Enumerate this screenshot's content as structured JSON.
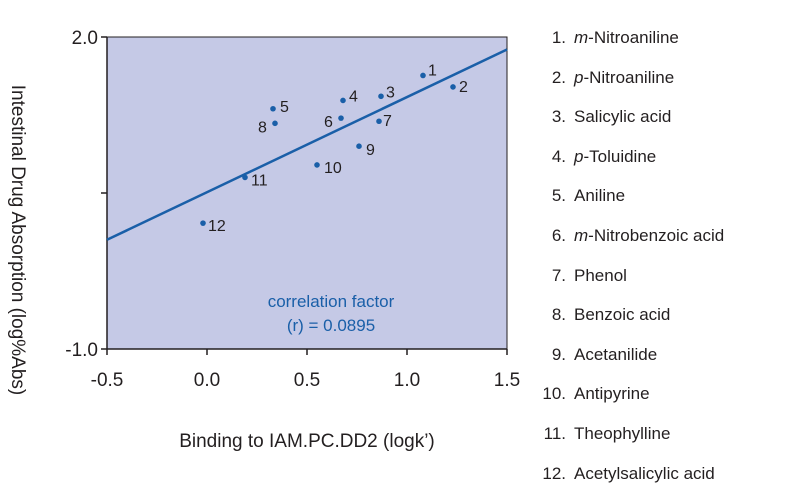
{
  "chart_data": {
    "type": "scatter",
    "title": "",
    "xlabel": "Binding to IAM.PC.DD2 (logk’)",
    "ylabel": "Intestinal Drug Absorption (log%Abs)",
    "xlim": [
      -0.5,
      1.5
    ],
    "ylim": [
      -1.0,
      2.0
    ],
    "x_ticks": [
      "-0.5",
      "0.0",
      "0.5",
      "1.0",
      "1.5"
    ],
    "y_ticks": [
      "2.0",
      "-1.0"
    ],
    "grid": false,
    "background_color": "#c5c9e6",
    "point_color": "#1a5fa8",
    "line_color": "#1a5fa8",
    "fit_line": {
      "x": [
        -0.5,
        1.5
      ],
      "y": [
        0.05,
        1.88
      ]
    },
    "points": [
      {
        "label": "1",
        "x": 1.08,
        "y": 1.63
      },
      {
        "label": "2",
        "x": 1.23,
        "y": 1.52
      },
      {
        "label": "3",
        "x": 0.87,
        "y": 1.43
      },
      {
        "label": "4",
        "x": 0.68,
        "y": 1.39
      },
      {
        "label": "5",
        "x": 0.33,
        "y": 1.31
      },
      {
        "label": "6",
        "x": 0.67,
        "y": 1.22
      },
      {
        "label": "7",
        "x": 0.86,
        "y": 1.19
      },
      {
        "label": "8",
        "x": 0.34,
        "y": 1.17
      },
      {
        "label": "9",
        "x": 0.76,
        "y": 0.95
      },
      {
        "label": "10",
        "x": 0.55,
        "y": 0.77
      },
      {
        "label": "11",
        "x": 0.19,
        "y": 0.65
      },
      {
        "label": "12",
        "x": -0.02,
        "y": 0.21
      }
    ],
    "annotation": {
      "line1": "correlation factor",
      "line2": "(r) = 0.0895",
      "color": "#1a5fa8"
    },
    "legend": [
      {
        "num": "1.",
        "prefix": "m",
        "name": "-Nitroaniline"
      },
      {
        "num": "2.",
        "prefix": "p",
        "name": "-Nitroaniline"
      },
      {
        "num": "3.",
        "prefix": "",
        "name": "Salicylic acid"
      },
      {
        "num": "4.",
        "prefix": "p",
        "name": "-Toluidine"
      },
      {
        "num": "5.",
        "prefix": "",
        "name": "Aniline"
      },
      {
        "num": "6.",
        "prefix": "m",
        "name": "-Nitrobenzoic acid"
      },
      {
        "num": "7.",
        "prefix": "",
        "name": "Phenol"
      },
      {
        "num": "8.",
        "prefix": "",
        "name": "Benzoic acid"
      },
      {
        "num": "9.",
        "prefix": "",
        "name": "Acetanilide"
      },
      {
        "num": "10.",
        "prefix": "",
        "name": "Antipyrine"
      },
      {
        "num": "11.",
        "prefix": "",
        "name": "Theophylline"
      },
      {
        "num": "12.",
        "prefix": "",
        "name": "Acetylsalicylic acid"
      }
    ]
  }
}
